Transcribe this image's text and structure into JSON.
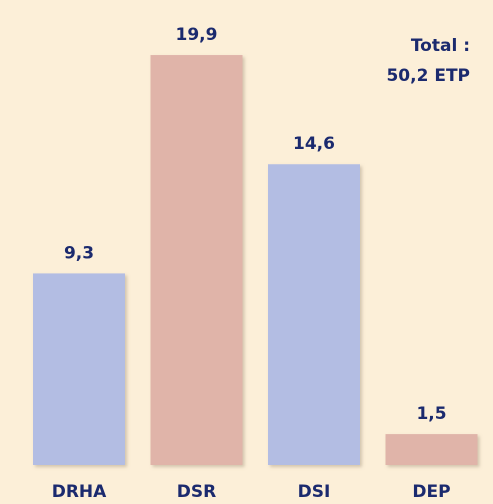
{
  "chart_data": {
    "type": "bar",
    "categories": [
      "DRHA",
      "DSR",
      "DSI",
      "DEP"
    ],
    "values": [
      9.3,
      19.9,
      14.6,
      1.5
    ],
    "value_labels": [
      "9,3",
      "19,9",
      "14,6",
      "1,5"
    ],
    "colors": [
      "#b3bde3",
      "#e0b4a9",
      "#b3bde3",
      "#e0b4a9"
    ],
    "annotations": [
      "Total :",
      "50,2 ETP"
    ]
  }
}
